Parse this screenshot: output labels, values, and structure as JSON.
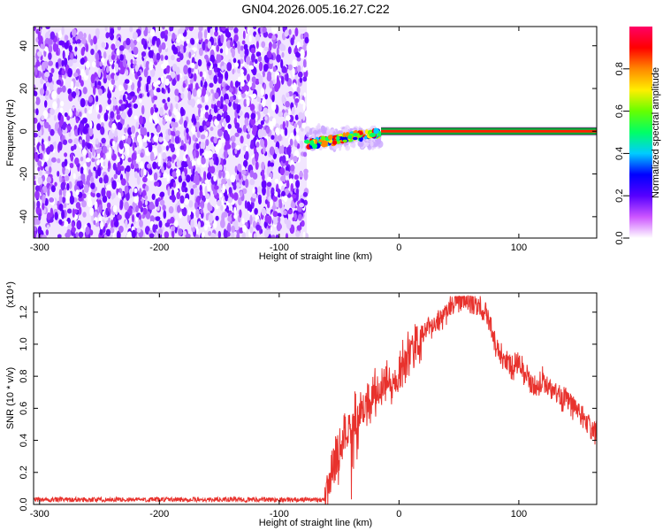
{
  "title": "GN04.2026.005.16.27.C22",
  "chart_data": [
    {
      "type": "heatmap",
      "xlabel": "Height of straight line (km)",
      "ylabel": "Frequency (Hz)",
      "xlim": [
        -305,
        165
      ],
      "ylim": [
        -50,
        49
      ],
      "x_ticks": [
        -300,
        -200,
        -100,
        0,
        100
      ],
      "y_ticks": [
        -40,
        -20,
        0,
        20,
        40
      ],
      "colorbar": {
        "label": "Normalized spectral amplitude",
        "range": [
          0,
          1
        ],
        "ticks": [
          0.0,
          0.2,
          0.4,
          0.6,
          0.8
        ],
        "colors": [
          "#ffffff",
          "#cc55ff",
          "#5500ff",
          "#0000ff",
          "#00ccff",
          "#00ff66",
          "#66ff00",
          "#ffee00",
          "#ff8800",
          "#ff0000",
          "#ff0066"
        ]
      },
      "regions": [
        {
          "name": "noise",
          "x_range": [
            -305,
            -77
          ],
          "y_range": [
            -50,
            49
          ],
          "amplitude": 0.2
        },
        {
          "name": "transition",
          "x_range": [
            -77,
            -15
          ],
          "y_center": -3,
          "y_halfwidth": 3,
          "amplitude": 0.6
        },
        {
          "name": "signal-line",
          "x_range": [
            -15,
            165
          ],
          "y_center": 0,
          "y_halfwidth": 1.5,
          "amplitude": 0.95
        }
      ]
    },
    {
      "type": "line",
      "xlabel": "Height of straight line (km)",
      "ylabel": "SNR (10 * v/v)",
      "y_multiplier": "(x10⁴)",
      "xlim": [
        -305,
        165
      ],
      "ylim": [
        0,
        1.32
      ],
      "x_ticks": [
        -300,
        -200,
        -100,
        0,
        100
      ],
      "y_ticks": [
        0.0,
        0.2,
        0.4,
        0.6,
        0.8,
        1.0,
        1.2
      ],
      "series": [
        {
          "color": "#e8322d",
          "x": [
            -305,
            -250,
            -200,
            -150,
            -100,
            -80,
            -62,
            -58,
            -55,
            -50,
            -45,
            -42,
            -40,
            -37,
            -35,
            -30,
            -25,
            -20,
            -15,
            -10,
            -5,
            0,
            5,
            10,
            15,
            20,
            25,
            30,
            35,
            40,
            45,
            50,
            55,
            60,
            65,
            70,
            75,
            80,
            85,
            90,
            95,
            100,
            105,
            110,
            115,
            120,
            125,
            130,
            135,
            140,
            145,
            150,
            155,
            160,
            165
          ],
          "y": [
            0.03,
            0.03,
            0.03,
            0.03,
            0.03,
            0.03,
            0.03,
            0.12,
            0.25,
            0.35,
            0.45,
            0.5,
            0.4,
            0.6,
            0.55,
            0.62,
            0.65,
            0.7,
            0.72,
            0.78,
            0.74,
            0.82,
            0.9,
            0.95,
            1.0,
            1.05,
            1.1,
            1.12,
            1.15,
            1.2,
            1.25,
            1.27,
            1.28,
            1.26,
            1.24,
            1.22,
            1.15,
            1.0,
            0.95,
            0.9,
            0.85,
            0.88,
            0.82,
            0.76,
            0.74,
            0.78,
            0.7,
            0.72,
            0.66,
            0.68,
            0.6,
            0.58,
            0.52,
            0.48,
            0.46
          ]
        }
      ]
    }
  ]
}
